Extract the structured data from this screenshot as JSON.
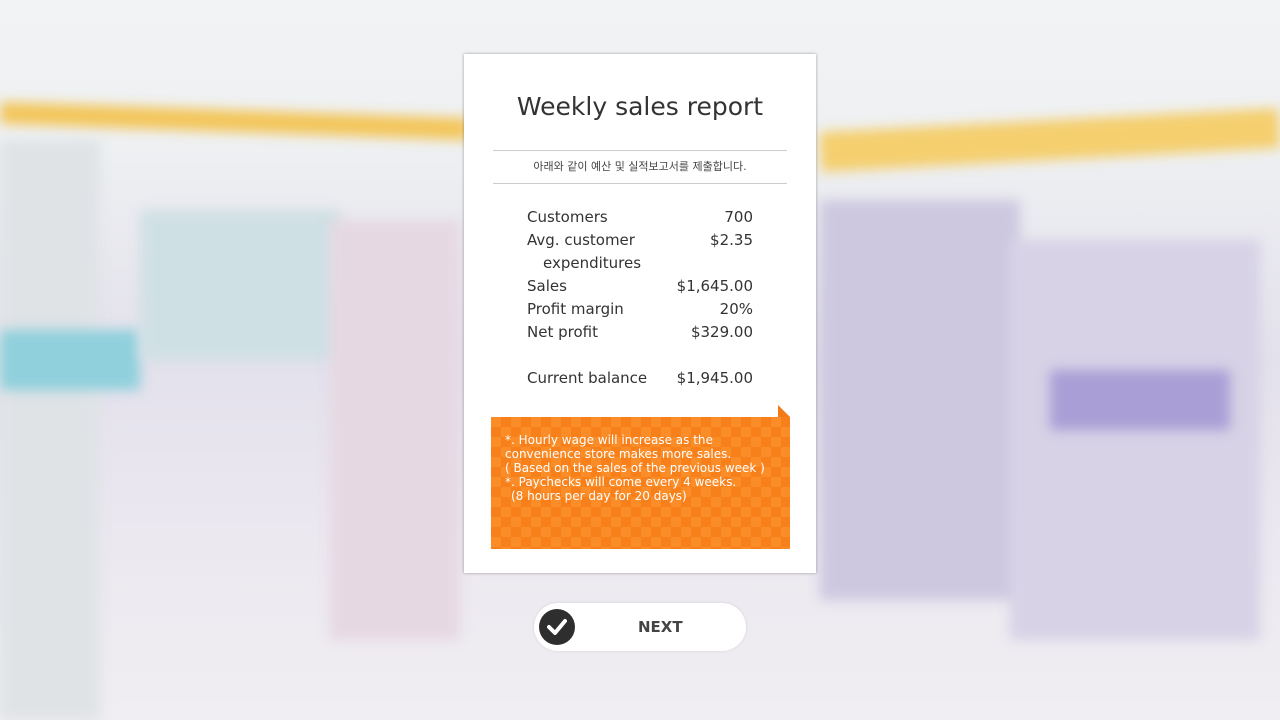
{
  "report": {
    "title": "Weekly sales report",
    "subtitle": "아래와 같이 예산 및 실적보고서를 제출합니다.",
    "rows": [
      {
        "label": "Customers",
        "value": "700"
      },
      {
        "label": "Avg. customer",
        "value": "$2.35"
      },
      {
        "label": "expenditures",
        "value": ""
      },
      {
        "label": "Sales",
        "value": "$1,645.00"
      },
      {
        "label": "Profit margin",
        "value": "20%"
      },
      {
        "label": "Net profit",
        "value": "$329.00"
      }
    ],
    "balance": {
      "label": "Current balance",
      "value": "$1,945.00"
    },
    "notes": [
      "*. Hourly wage will increase as the convenience store makes more sales.",
      "( Based on the sales of the previous week )",
      "*.  Paychecks will come every 4 weeks.",
      "(8 hours per day for 20 days)"
    ],
    "note_color": "#fb8a22"
  },
  "next_button": {
    "label": "NEXT",
    "icon": "check-circle-icon"
  }
}
